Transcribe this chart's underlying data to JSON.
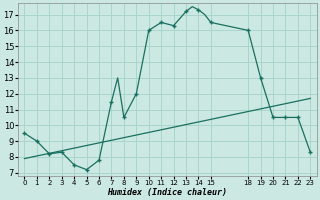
{
  "xlabel": "Humidex (Indice chaleur)",
  "background_color": "#cbe8e2",
  "grid_color": "#a8d5cc",
  "line_color": "#1a7060",
  "xlim": [
    -0.5,
    23.5
  ],
  "ylim": [
    6.8,
    17.7
  ],
  "yticks": [
    7,
    8,
    9,
    10,
    11,
    12,
    13,
    14,
    15,
    16,
    17
  ],
  "xtick_positions": [
    0,
    1,
    2,
    3,
    4,
    5,
    6,
    7,
    8,
    9,
    10,
    11,
    12,
    13,
    14,
    15,
    18,
    19,
    20,
    21,
    22,
    23
  ],
  "xtick_labels": [
    "0",
    "1",
    "2",
    "3",
    "4",
    "5",
    "6",
    "7",
    "8",
    "9",
    "10",
    "11",
    "12",
    "13",
    "14",
    "15",
    "18",
    "19",
    "20",
    "21",
    "22",
    "23"
  ],
  "curve1_x": [
    0,
    1,
    2,
    3,
    4,
    5,
    6,
    7,
    7.5,
    8,
    9,
    10,
    11,
    12,
    13,
    13.5,
    14,
    14.5,
    15,
    18,
    19,
    20,
    21,
    22,
    23
  ],
  "curve1_y": [
    9.5,
    9.0,
    8.2,
    8.3,
    7.5,
    7.2,
    7.8,
    11.5,
    13.0,
    10.5,
    12.0,
    16.0,
    16.5,
    16.3,
    17.2,
    17.5,
    17.3,
    17.0,
    16.5,
    16.0,
    13.0,
    10.5,
    10.5,
    10.5,
    8.3
  ],
  "curve1_marker_x": [
    0,
    1,
    2,
    3,
    4,
    5,
    6,
    7,
    8,
    9,
    10,
    11,
    12,
    13,
    14,
    15,
    18,
    19,
    20,
    21,
    22,
    23
  ],
  "curve1_marker_y": [
    9.5,
    9.0,
    8.2,
    8.3,
    7.5,
    7.2,
    7.8,
    11.5,
    10.5,
    12.0,
    16.0,
    16.5,
    16.3,
    17.2,
    17.3,
    16.5,
    16.0,
    13.0,
    10.5,
    10.5,
    10.5,
    8.3
  ],
  "curve2_x": [
    0,
    23
  ],
  "curve2_y": [
    7.9,
    11.7
  ]
}
